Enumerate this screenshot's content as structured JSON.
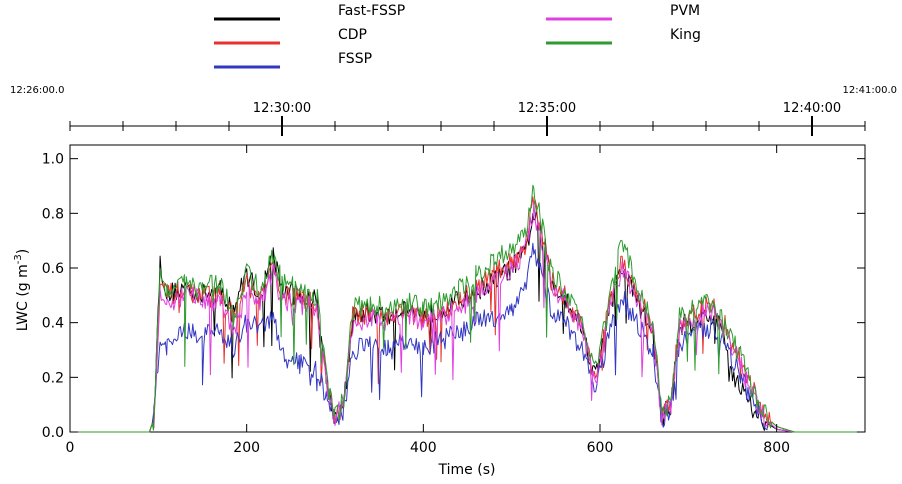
{
  "chart_data": {
    "type": "line",
    "title": "",
    "xlabel": "Time (s)",
    "ylabel": "LWC (g m",
    "ylabel_sup": "-3",
    "ylabel_close": ")",
    "xlim": [
      0,
      900
    ],
    "ylim": [
      0,
      1.05
    ],
    "x_ticks": [
      0,
      200,
      400,
      600,
      800
    ],
    "x_tick_labels": [
      "0",
      "200",
      "400",
      "600",
      "800"
    ],
    "y_ticks": [
      0,
      0.2,
      0.4,
      0.6,
      0.8,
      1.0
    ],
    "y_tick_labels": [
      "0.0",
      "0.2",
      "0.4",
      "0.6",
      "0.8",
      "1.0"
    ],
    "top_axis": {
      "start_label": "12:26:00.0",
      "end_label": "12:41:00.0",
      "major": [
        {
          "x": 240,
          "label": "12:30:00"
        },
        {
          "x": 540,
          "label": "12:35:00"
        },
        {
          "x": 840,
          "label": "12:40:00"
        }
      ],
      "minor_x": [
        0,
        60,
        120,
        180,
        300,
        360,
        420,
        480,
        600,
        660,
        720,
        780,
        900
      ]
    },
    "legend_placement": "top, above chart, two columns",
    "series": [
      {
        "name": "Fast-FSSP",
        "color": "#000000",
        "x": [
          0,
          90,
          95,
          98,
          102,
          110,
          130,
          150,
          170,
          185,
          200,
          215,
          230,
          240,
          260,
          280,
          290,
          300,
          310,
          320,
          340,
          360,
          380,
          400,
          420,
          440,
          460,
          480,
          500,
          515,
          525,
          535,
          545,
          560,
          580,
          595,
          610,
          625,
          640,
          660,
          670,
          680,
          690,
          700,
          720,
          730,
          740,
          750,
          760,
          770,
          780,
          790,
          800,
          820,
          850,
          900
        ],
        "y": [
          0,
          0,
          0.05,
          0.3,
          0.62,
          0.5,
          0.53,
          0.5,
          0.52,
          0.45,
          0.58,
          0.5,
          0.65,
          0.52,
          0.5,
          0.48,
          0.2,
          0.05,
          0.1,
          0.42,
          0.44,
          0.42,
          0.46,
          0.42,
          0.45,
          0.48,
          0.52,
          0.55,
          0.6,
          0.65,
          0.8,
          0.72,
          0.55,
          0.5,
          0.38,
          0.2,
          0.45,
          0.6,
          0.5,
          0.35,
          0.05,
          0.1,
          0.38,
          0.4,
          0.42,
          0.42,
          0.35,
          0.22,
          0.16,
          0.1,
          0.06,
          0.03,
          0.01,
          0,
          0,
          0
        ]
      },
      {
        "name": "CDP",
        "color": "#e8312f",
        "x": [
          0,
          90,
          95,
          98,
          102,
          110,
          130,
          150,
          170,
          185,
          200,
          215,
          230,
          240,
          260,
          280,
          290,
          300,
          310,
          320,
          340,
          360,
          380,
          400,
          420,
          440,
          460,
          480,
          500,
          515,
          525,
          535,
          545,
          560,
          580,
          595,
          610,
          625,
          640,
          660,
          670,
          680,
          690,
          700,
          720,
          730,
          740,
          750,
          760,
          770,
          780,
          790,
          800,
          820,
          850,
          900
        ],
        "y": [
          0,
          0,
          0.05,
          0.25,
          0.55,
          0.5,
          0.52,
          0.5,
          0.5,
          0.42,
          0.55,
          0.48,
          0.6,
          0.5,
          0.49,
          0.46,
          0.2,
          0.05,
          0.1,
          0.42,
          0.44,
          0.42,
          0.45,
          0.41,
          0.44,
          0.47,
          0.52,
          0.58,
          0.62,
          0.68,
          0.85,
          0.7,
          0.55,
          0.5,
          0.38,
          0.2,
          0.45,
          0.62,
          0.52,
          0.38,
          0.05,
          0.1,
          0.4,
          0.42,
          0.46,
          0.45,
          0.4,
          0.32,
          0.26,
          0.18,
          0.1,
          0.05,
          0.02,
          0,
          0,
          0
        ]
      },
      {
        "name": "FSSP",
        "color": "#3338c2",
        "x": [
          0,
          90,
          95,
          98,
          102,
          110,
          130,
          150,
          170,
          185,
          200,
          215,
          230,
          240,
          260,
          280,
          290,
          300,
          310,
          320,
          340,
          360,
          380,
          400,
          420,
          440,
          460,
          480,
          500,
          515,
          525,
          535,
          545,
          560,
          580,
          595,
          610,
          625,
          640,
          660,
          670,
          680,
          690,
          700,
          720,
          730,
          740,
          750,
          760,
          770,
          780,
          790,
          800,
          820,
          850,
          900
        ],
        "y": [
          0,
          0,
          0.05,
          0.2,
          0.35,
          0.3,
          0.38,
          0.35,
          0.38,
          0.3,
          0.4,
          0.38,
          0.42,
          0.28,
          0.25,
          0.22,
          0.12,
          0.04,
          0.08,
          0.3,
          0.32,
          0.3,
          0.33,
          0.3,
          0.34,
          0.36,
          0.4,
          0.42,
          0.45,
          0.52,
          0.68,
          0.55,
          0.45,
          0.4,
          0.3,
          0.15,
          0.35,
          0.5,
          0.4,
          0.3,
          0.04,
          0.08,
          0.32,
          0.35,
          0.38,
          0.38,
          0.33,
          0.27,
          0.2,
          0.13,
          0.08,
          0.04,
          0.01,
          0,
          0,
          0
        ]
      },
      {
        "name": "PVM",
        "color": "#e040e0",
        "x": [
          0,
          90,
          95,
          98,
          102,
          110,
          130,
          150,
          170,
          185,
          200,
          215,
          230,
          240,
          260,
          280,
          290,
          300,
          310,
          320,
          340,
          360,
          380,
          400,
          420,
          440,
          460,
          480,
          500,
          515,
          525,
          535,
          545,
          560,
          580,
          595,
          610,
          625,
          640,
          660,
          670,
          680,
          690,
          700,
          720,
          730,
          740,
          750,
          760,
          770,
          780,
          790,
          800,
          820,
          850,
          900
        ],
        "y": [
          0,
          0,
          0.05,
          0.25,
          0.5,
          0.45,
          0.5,
          0.48,
          0.48,
          0.35,
          0.52,
          0.46,
          0.58,
          0.48,
          0.47,
          0.45,
          0.18,
          0.05,
          0.1,
          0.4,
          0.42,
          0.4,
          0.44,
          0.4,
          0.42,
          0.45,
          0.5,
          0.55,
          0.6,
          0.66,
          0.82,
          0.68,
          0.52,
          0.48,
          0.37,
          0.18,
          0.44,
          0.6,
          0.5,
          0.36,
          0.05,
          0.1,
          0.38,
          0.4,
          0.44,
          0.44,
          0.38,
          0.3,
          0.24,
          0.16,
          0.09,
          0.04,
          0.01,
          0,
          0,
          0
        ]
      },
      {
        "name": "King",
        "color": "#2e9b2e",
        "x": [
          0,
          90,
          95,
          98,
          102,
          110,
          130,
          150,
          170,
          185,
          200,
          215,
          230,
          240,
          260,
          280,
          290,
          300,
          310,
          320,
          340,
          360,
          380,
          400,
          420,
          440,
          460,
          480,
          500,
          515,
          525,
          535,
          545,
          560,
          580,
          595,
          610,
          625,
          640,
          660,
          670,
          680,
          690,
          700,
          720,
          730,
          740,
          750,
          760,
          770,
          780,
          790,
          800,
          820,
          850,
          900
        ],
        "y": [
          0,
          0,
          0.05,
          0.3,
          0.58,
          0.52,
          0.55,
          0.52,
          0.55,
          0.42,
          0.58,
          0.52,
          0.65,
          0.55,
          0.52,
          0.5,
          0.2,
          0.05,
          0.12,
          0.45,
          0.47,
          0.45,
          0.48,
          0.45,
          0.48,
          0.52,
          0.58,
          0.62,
          0.68,
          0.72,
          0.88,
          0.75,
          0.58,
          0.52,
          0.4,
          0.22,
          0.48,
          0.7,
          0.55,
          0.4,
          0.05,
          0.12,
          0.42,
          0.44,
          0.48,
          0.47,
          0.4,
          0.33,
          0.27,
          0.18,
          0.1,
          0.05,
          0.02,
          0,
          0,
          0
        ]
      }
    ]
  }
}
